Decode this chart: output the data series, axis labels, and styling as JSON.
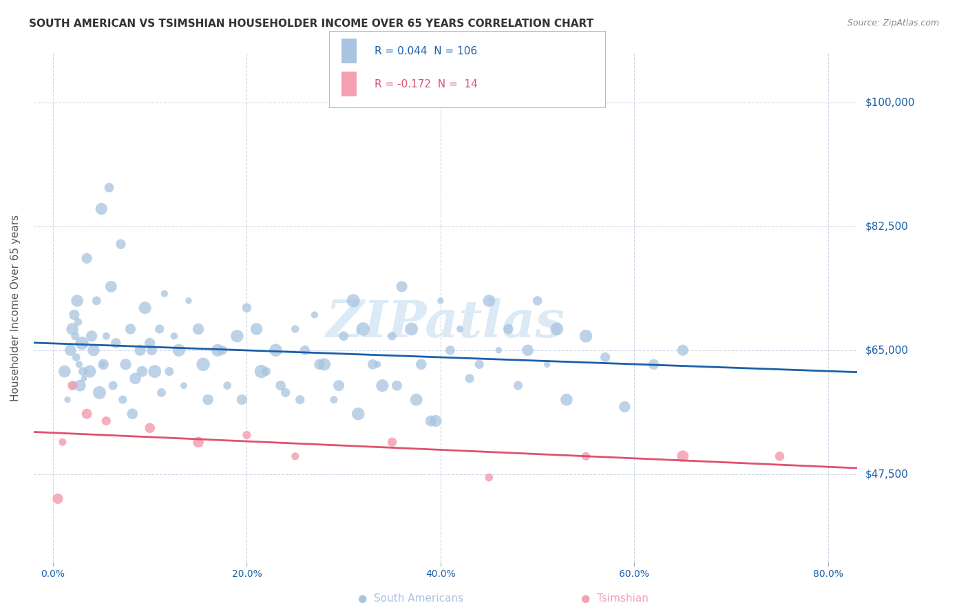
{
  "title": "SOUTH AMERICAN VS TSIMSHIAN HOUSEHOLDER INCOME OVER 65 YEARS CORRELATION CHART",
  "source": "Source: ZipAtlas.com",
  "ylabel": "Householder Income Over 65 years",
  "xlabel_ticks": [
    "0.0%",
    "20.0%",
    "40.0%",
    "60.0%",
    "80.0%"
  ],
  "xlabel_vals": [
    0.0,
    20.0,
    40.0,
    60.0,
    80.0
  ],
  "yticks_labels": [
    "$47,500",
    "$65,000",
    "$82,500",
    "$100,000"
  ],
  "yticks_vals": [
    47500,
    65000,
    82500,
    100000
  ],
  "ymin": 35000,
  "ymax": 107000,
  "xmin": -2.0,
  "xmax": 83.0,
  "r_south": 0.044,
  "n_south": 106,
  "r_tsim": -0.172,
  "n_tsim": 14,
  "color_south": "#a8c4e0",
  "color_tsim": "#f4a0b0",
  "color_south_line": "#1a5fa8",
  "color_tsim_line": "#e05070",
  "color_south_text": "#1a5fa8",
  "color_tsim_text": "#e05070",
  "watermark": "ZIPatlas",
  "watermark_color": "#c8dff0",
  "background_color": "#ffffff",
  "grid_color": "#d0d8e8",
  "south_x": [
    1.2,
    1.5,
    1.8,
    2.0,
    2.2,
    2.3,
    2.4,
    2.5,
    2.6,
    2.7,
    2.8,
    3.0,
    3.2,
    3.5,
    3.8,
    4.0,
    4.2,
    4.5,
    4.8,
    5.0,
    5.2,
    5.5,
    5.8,
    6.0,
    6.5,
    7.0,
    7.5,
    8.0,
    8.5,
    9.0,
    9.5,
    10.0,
    10.5,
    11.0,
    11.5,
    12.0,
    12.5,
    13.0,
    14.0,
    15.0,
    16.0,
    17.0,
    18.0,
    19.0,
    20.0,
    21.0,
    22.0,
    23.0,
    24.0,
    25.0,
    26.0,
    27.0,
    28.0,
    29.0,
    30.0,
    31.0,
    32.0,
    33.0,
    34.0,
    35.0,
    36.0,
    37.0,
    38.0,
    39.0,
    40.0,
    41.0,
    42.0,
    43.0,
    44.0,
    45.0,
    46.0,
    47.0,
    48.0,
    49.0,
    50.0,
    51.0,
    52.0,
    53.0,
    55.0,
    57.0,
    59.0,
    62.0,
    65.0,
    2.1,
    3.1,
    5.1,
    6.2,
    7.2,
    8.2,
    9.2,
    10.2,
    11.2,
    13.5,
    15.5,
    17.5,
    19.5,
    21.5,
    23.5,
    25.5,
    27.5,
    29.5,
    31.5,
    33.5,
    35.5,
    37.5,
    39.5
  ],
  "south_y": [
    62000,
    58000,
    65000,
    68000,
    70000,
    67000,
    64000,
    72000,
    69000,
    63000,
    60000,
    66000,
    61000,
    78000,
    62000,
    67000,
    65000,
    72000,
    59000,
    85000,
    63000,
    67000,
    88000,
    74000,
    66000,
    80000,
    63000,
    68000,
    61000,
    65000,
    71000,
    66000,
    62000,
    68000,
    73000,
    62000,
    67000,
    65000,
    72000,
    68000,
    58000,
    65000,
    60000,
    67000,
    71000,
    68000,
    62000,
    65000,
    59000,
    68000,
    65000,
    70000,
    63000,
    58000,
    67000,
    72000,
    68000,
    63000,
    60000,
    67000,
    74000,
    68000,
    63000,
    55000,
    72000,
    65000,
    68000,
    61000,
    63000,
    72000,
    65000,
    68000,
    60000,
    65000,
    72000,
    63000,
    68000,
    58000,
    67000,
    64000,
    57000,
    63000,
    65000,
    60000,
    62000,
    63000,
    60000,
    58000,
    56000,
    62000,
    65000,
    59000,
    60000,
    63000,
    65000,
    58000,
    62000,
    60000,
    58000,
    63000,
    60000,
    56000,
    63000,
    60000,
    58000,
    55000
  ],
  "tsim_x": [
    0.5,
    1.0,
    2.0,
    3.5,
    5.5,
    10.0,
    15.0,
    20.0,
    25.0,
    35.0,
    45.0,
    55.0,
    65.0,
    75.0
  ],
  "tsim_y": [
    44000,
    52000,
    60000,
    56000,
    55000,
    54000,
    52000,
    53000,
    50000,
    52000,
    47000,
    50000,
    50000,
    50000
  ]
}
